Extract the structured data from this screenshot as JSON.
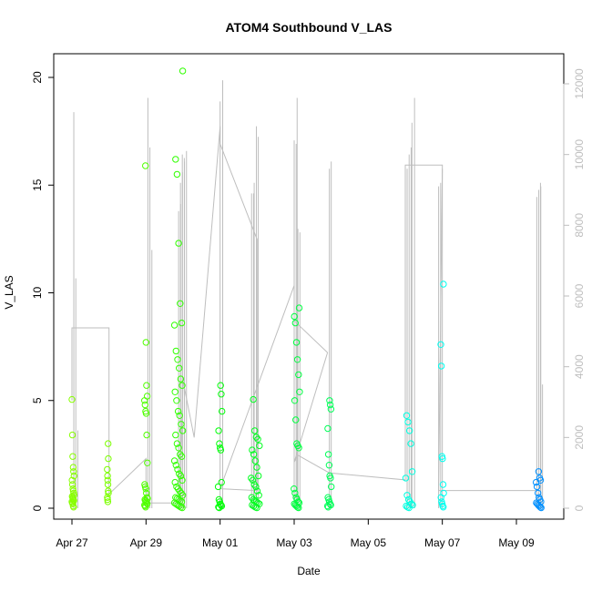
{
  "chart_data": {
    "type": "scatter",
    "title": "ATOM4 Southbound V_LAS",
    "xlabel": "Date",
    "ylabel": "V_LAS",
    "x_ticks": [
      "Apr 27",
      "Apr 29",
      "May 01",
      "May 03",
      "May 05",
      "May 07",
      "May 09"
    ],
    "x_tick_days": [
      0,
      2,
      4,
      6,
      8,
      10,
      12
    ],
    "xlim_days": [
      -0.45,
      12.45
    ],
    "ylim": [
      0,
      20.5
    ],
    "y_ticks": [
      0,
      5,
      10,
      15,
      20
    ],
    "y2lim": [
      0,
      12300
    ],
    "y2_ticks": [
      0,
      2000,
      4000,
      6000,
      8000,
      10000,
      12000
    ],
    "axis_color_right": "#bebebe",
    "line_color": "#bebebe",
    "marker": "open-circle",
    "grid": false,
    "clusters": [
      {
        "day": 0.03,
        "color": "#88ff00",
        "width": 0.06,
        "points": [
          5.05,
          3.4,
          2.4,
          1.9,
          1.7,
          1.5,
          1.3,
          1.1,
          0.9,
          0.8,
          0.7,
          0.6,
          0.55,
          0.5,
          0.45,
          0.4,
          0.35,
          0.3,
          0.25,
          0.2,
          0.1,
          0.05
        ]
      },
      {
        "day": 0.97,
        "color": "#7cff00",
        "width": 0.03,
        "points": [
          3.0,
          2.3,
          1.8,
          1.5,
          1.3,
          1.1,
          0.8,
          0.7,
          0.5,
          0.4,
          0.3
        ]
      },
      {
        "day": 2.0,
        "color": "#50ff00",
        "width": 0.08,
        "points": [
          15.9,
          7.7,
          5.7,
          5.2,
          5.0,
          4.8,
          4.5,
          4.4,
          3.4,
          2.1,
          1.1,
          1.0,
          0.9,
          0.7,
          0.5,
          0.45,
          0.4,
          0.35,
          0.3,
          0.25,
          0.2,
          0.15,
          0.1,
          0.05
        ]
      },
      {
        "day": 2.88,
        "color": "#30ff00",
        "width": 0.22,
        "points": [
          20.3,
          16.2,
          15.5,
          12.3,
          9.5,
          8.6,
          8.5,
          7.3,
          6.9,
          6.5,
          6.0,
          5.7,
          5.4,
          5.0,
          4.5,
          4.3,
          3.9,
          3.6,
          3.4,
          3.0,
          2.8,
          2.5,
          2.4,
          2.2,
          2.0,
          1.8,
          1.6,
          1.5,
          1.3,
          1.2,
          1.0,
          0.9,
          0.8,
          0.7,
          0.6,
          0.5,
          0.45,
          0.4,
          0.35,
          0.3,
          0.25,
          0.2,
          0.15,
          0.1,
          0.05,
          0.02
        ]
      },
      {
        "day": 4.0,
        "color": "#00ff08",
        "width": 0.1,
        "points": [
          5.7,
          5.3,
          4.5,
          3.6,
          3.0,
          2.8,
          2.7,
          1.2,
          1.0,
          0.4,
          0.3,
          0.2,
          0.15,
          0.1,
          0.05,
          0.02
        ]
      },
      {
        "day": 4.95,
        "color": "#00ff20",
        "width": 0.22,
        "points": [
          5.05,
          3.6,
          3.3,
          3.2,
          2.9,
          2.7,
          2.5,
          2.2,
          1.9,
          1.5,
          1.4,
          1.3,
          1.1,
          1.0,
          0.8,
          0.6,
          0.5,
          0.4,
          0.35,
          0.3,
          0.25,
          0.2,
          0.15,
          0.1,
          0.05,
          0.02
        ]
      },
      {
        "day": 6.07,
        "color": "#00ff40",
        "width": 0.15,
        "points": [
          9.3,
          8.9,
          8.6,
          7.7,
          6.9,
          6.2,
          5.4,
          5.0,
          4.1,
          3.0,
          2.9,
          2.8,
          0.9,
          0.7,
          0.5,
          0.4,
          0.3,
          0.25,
          0.2,
          0.15,
          0.1,
          0.05,
          0.02
        ]
      },
      {
        "day": 6.95,
        "color": "#00ff58",
        "width": 0.1,
        "points": [
          5.0,
          4.8,
          4.6,
          3.7,
          2.5,
          2.0,
          1.5,
          1.4,
          1.0,
          0.5,
          0.4,
          0.3,
          0.2,
          0.15,
          0.1,
          0.05
        ]
      },
      {
        "day": 9.1,
        "color": "#00ffe0",
        "width": 0.2,
        "points": [
          4.3,
          4.0,
          3.6,
          3.0,
          1.7,
          1.4,
          0.6,
          0.4,
          0.3,
          0.2,
          0.15,
          0.1,
          0.05,
          0.02
        ]
      },
      {
        "day": 10.0,
        "color": "#00fff0",
        "width": 0.08,
        "points": [
          10.4,
          7.6,
          6.6,
          2.4,
          2.3,
          1.1,
          0.7,
          0.5,
          0.3,
          0.2,
          0.1,
          0.05
        ]
      },
      {
        "day": 12.6,
        "color": "#0090ff",
        "width": 0.14,
        "points": [
          1.7,
          1.4,
          1.3,
          1.2,
          1.0,
          0.7,
          0.5,
          0.4,
          0.3,
          0.25,
          0.2,
          0.15,
          0.1,
          0.05,
          0.02
        ]
      }
    ],
    "spikes": [
      {
        "day": 0.05,
        "values": [
          11200,
          6500,
          2200
        ]
      },
      {
        "day": 2.05,
        "values": [
          11600,
          10200,
          7300
        ]
      },
      {
        "day": 2.88,
        "values": [
          8400,
          8600
        ]
      },
      {
        "day": 2.93,
        "values": [
          9200,
          9500,
          9800,
          10100
        ]
      },
      {
        "day": 2.98,
        "values": [
          10000,
          9900
        ]
      },
      {
        "day": 4.0,
        "values": [
          11500
        ]
      },
      {
        "day": 4.07,
        "values": [
          12100
        ]
      },
      {
        "day": 4.85,
        "values": [
          8900,
          8900
        ]
      },
      {
        "day": 4.92,
        "values": [
          9200
        ]
      },
      {
        "day": 4.98,
        "values": [
          10800
        ]
      },
      {
        "day": 5.03,
        "values": [
          10500
        ]
      },
      {
        "day": 6.0,
        "values": [
          10400,
          10300
        ]
      },
      {
        "day": 6.08,
        "values": [
          11600
        ]
      },
      {
        "day": 6.1,
        "values": [
          7900,
          7800
        ]
      },
      {
        "day": 6.95,
        "values": [
          9600
        ]
      },
      {
        "day": 7.0,
        "values": [
          9800
        ]
      },
      {
        "day": 9.05,
        "values": [
          9600,
          10000,
          10200
        ]
      },
      {
        "day": 9.18,
        "values": [
          10900
        ]
      },
      {
        "day": 9.25,
        "values": [
          11600
        ]
      },
      {
        "day": 9.9,
        "values": [
          9100,
          9200
        ]
      },
      {
        "day": 10.0,
        "values": [
          9600
        ]
      },
      {
        "day": 12.55,
        "values": [
          8800,
          9000,
          9100
        ]
      },
      {
        "day": 12.65,
        "values": [
          9200,
          3500
        ]
      }
    ],
    "trend_line": [
      [
        0.0,
        5.0
      ],
      [
        0.0,
        5100
      ],
      [
        1.0,
        5100
      ],
      [
        1.0,
        400
      ],
      [
        2.0,
        1400
      ],
      [
        2.0,
        150
      ],
      [
        2.9,
        150
      ],
      [
        3.0,
        3600
      ],
      [
        3.3,
        2000
      ],
      [
        4.0,
        10800
      ],
      [
        4.0,
        10300
      ],
      [
        5.0,
        7600
      ],
      [
        5.0,
        500
      ],
      [
        4.0,
        550
      ],
      [
        6.0,
        6300
      ],
      [
        6.0,
        5300
      ],
      [
        6.9,
        4400
      ],
      [
        6.0,
        1300
      ],
      [
        6.1,
        1500
      ],
      [
        6.95,
        1000
      ],
      [
        9.0,
        800
      ],
      [
        9.0,
        9700
      ],
      [
        10.0,
        9700
      ],
      [
        9.9,
        500
      ],
      [
        12.6,
        500
      ]
    ]
  }
}
